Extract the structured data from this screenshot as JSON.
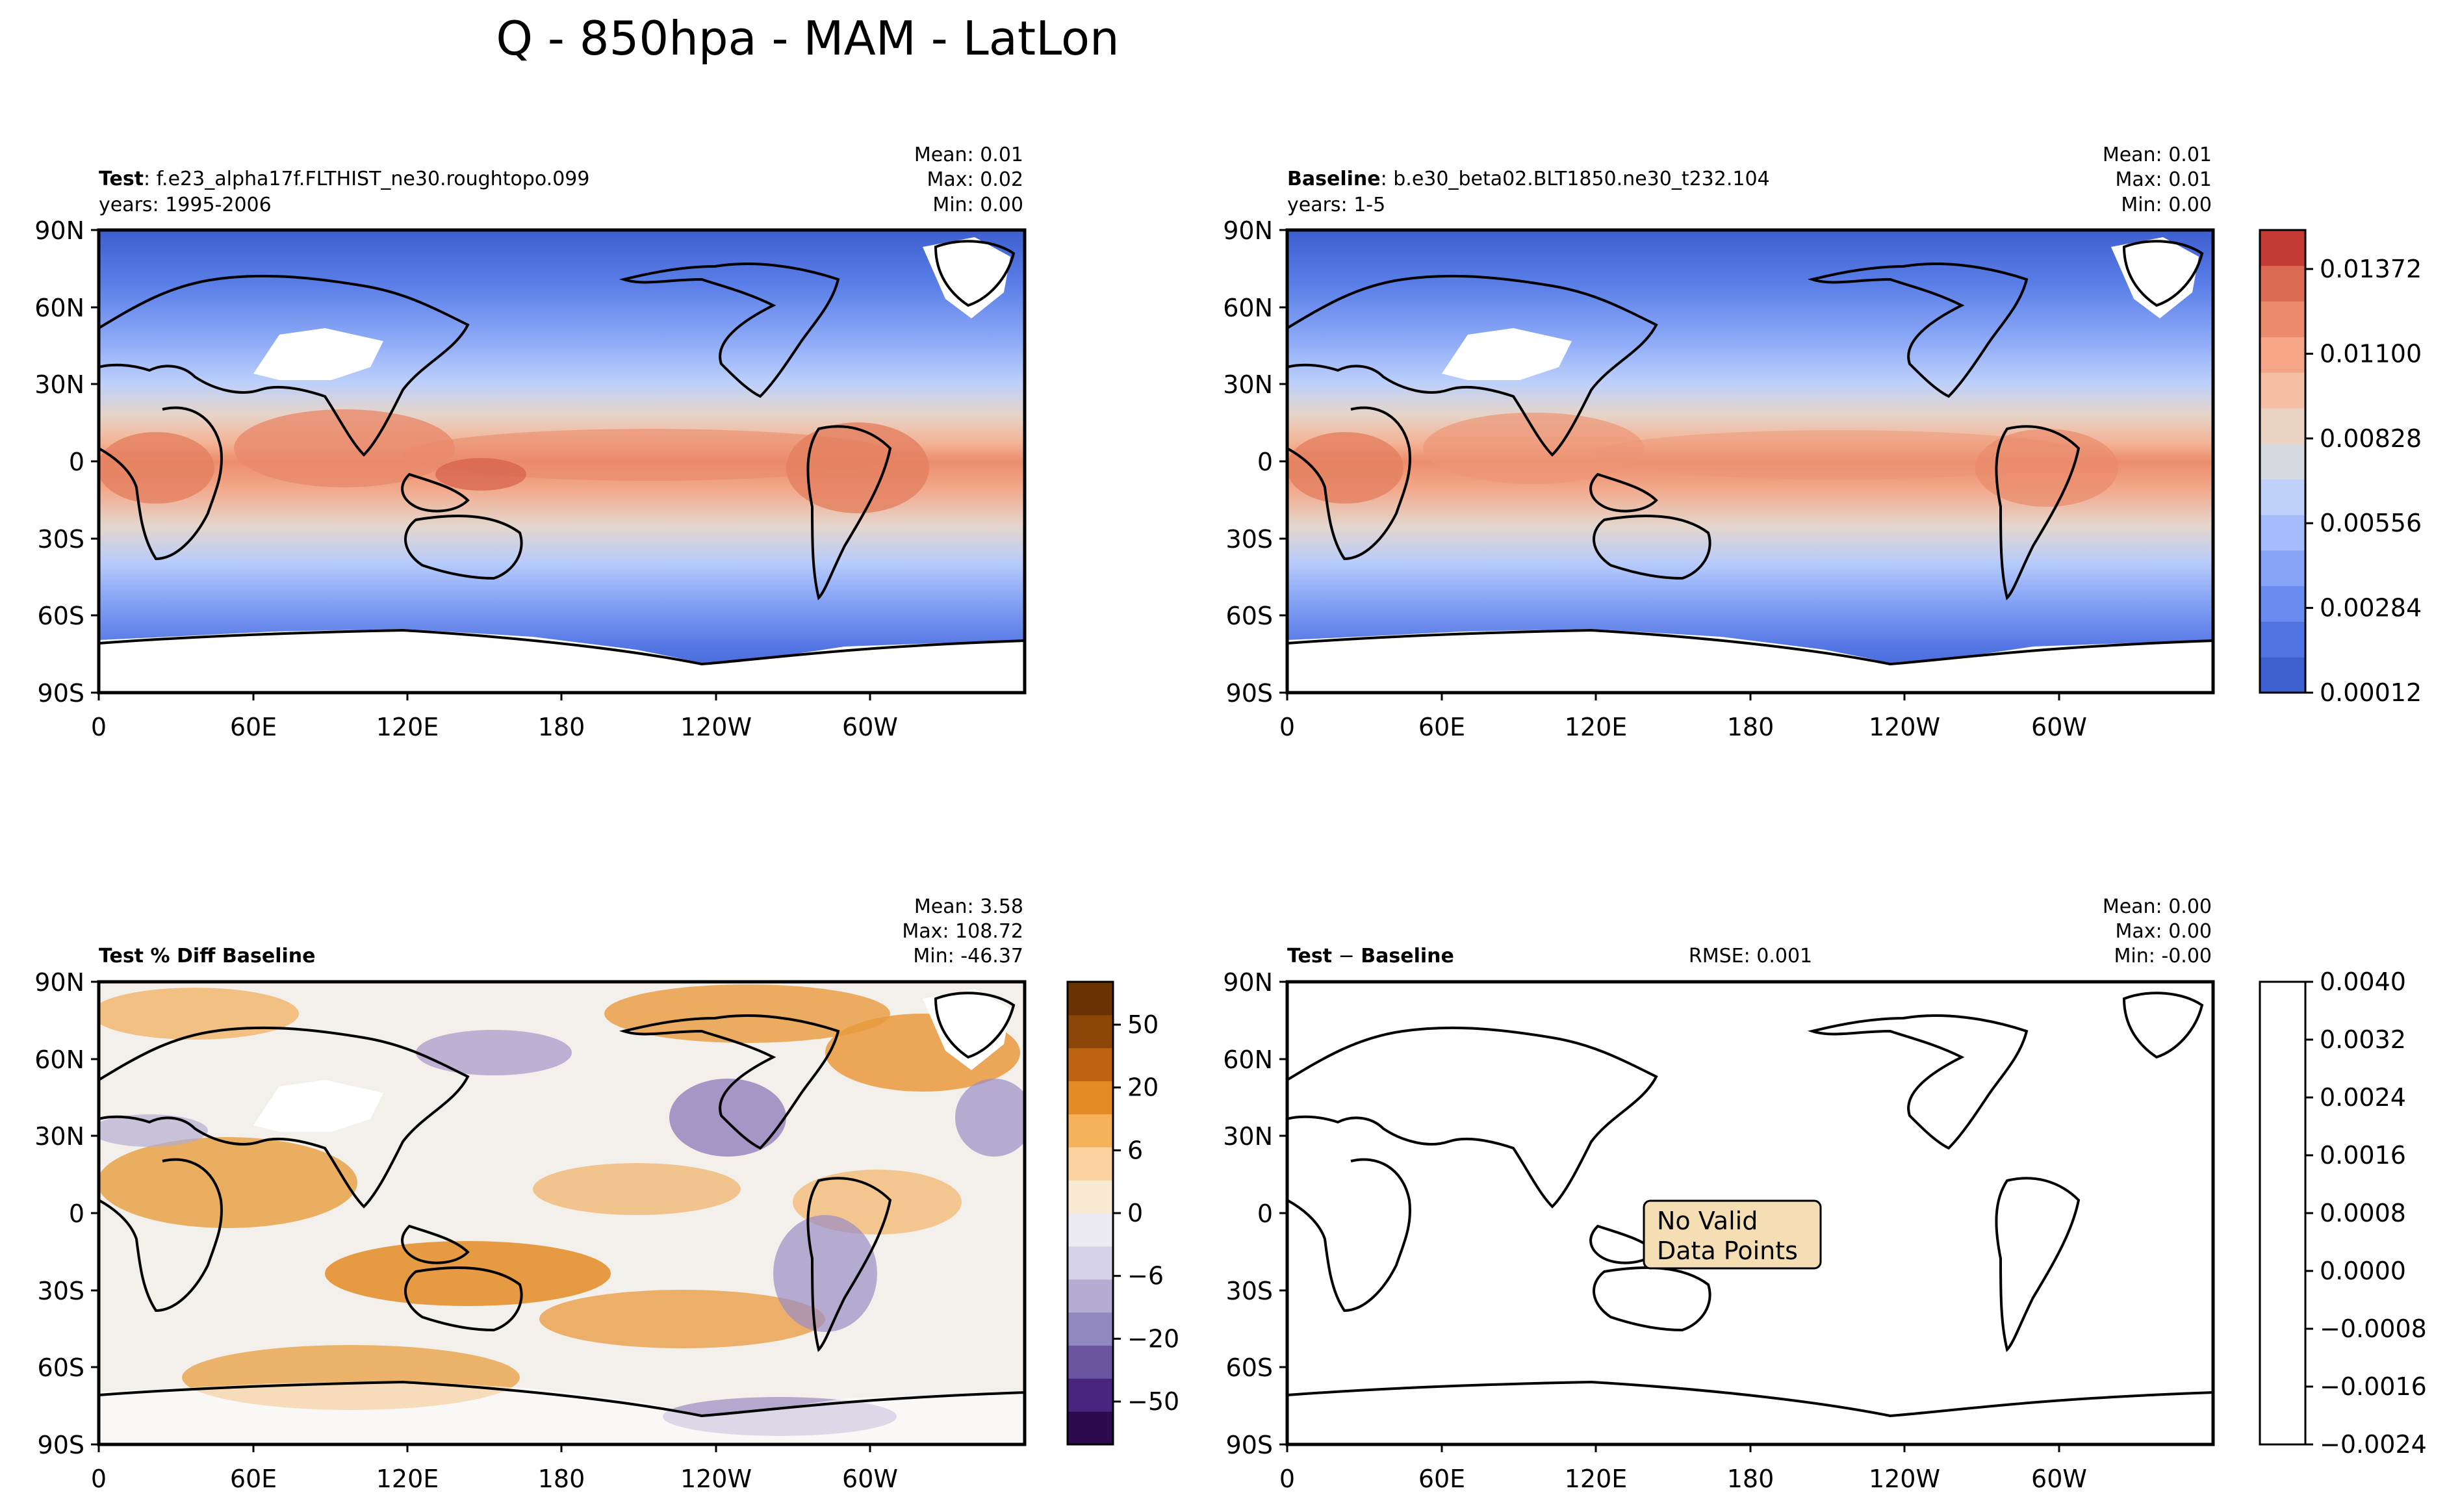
{
  "figure": {
    "title": "Q - 850hpa - MAM - LatLon"
  },
  "chart_data": [
    {
      "type": "heatmap",
      "id": "test",
      "title_bold": "Test",
      "title_rest": ": f.e23_alpha17f.FLTHIST_ne30.roughtopo.099",
      "subtitle": "years: 1995-2006",
      "stats": {
        "mean": "Mean:  0.01",
        "max": "Max:  0.02",
        "min": "Min:  0.00"
      },
      "x_ticks": [
        "0",
        "60E",
        "120E",
        "180",
        "120W",
        "60W"
      ],
      "y_ticks": [
        "90N",
        "60N",
        "30N",
        "0",
        "30S",
        "60S",
        "90S"
      ],
      "xlim": [
        0,
        360
      ],
      "ylim": [
        -90,
        90
      ],
      "colormap": "coolwarm",
      "description": "Specific humidity at 850 hPa, moist tropics (red) and dry poles (blue); missing values over high terrain."
    },
    {
      "type": "heatmap",
      "id": "baseline",
      "title_bold": "Baseline",
      "title_rest": ": b.e30_beta02.BLT1850.ne30_t232.104",
      "subtitle": "years: 1-5",
      "stats": {
        "mean": "Mean:  0.01",
        "max": "Max:  0.01",
        "min": "Min:  0.00"
      },
      "x_ticks": [
        "0",
        "60E",
        "120E",
        "180",
        "120W",
        "60W"
      ],
      "y_ticks": [
        "90N",
        "60N",
        "30N",
        "0",
        "30S",
        "60S",
        "90S"
      ],
      "xlim": [
        0,
        360
      ],
      "ylim": [
        -90,
        90
      ],
      "colormap": "coolwarm",
      "colorbar_ticks": [
        "0.01372",
        "0.01100",
        "0.00828",
        "0.00556",
        "0.00284",
        "0.00012"
      ]
    },
    {
      "type": "heatmap",
      "id": "pctdiff",
      "title_bold": "Test % Diff Baseline",
      "stats": {
        "mean": "Mean:  3.58",
        "max": "Max: 108.72",
        "min": "Min: -46.37"
      },
      "x_ticks": [
        "0",
        "60E",
        "120E",
        "180",
        "120W",
        "60W"
      ],
      "y_ticks": [
        "90N",
        "60N",
        "30N",
        "0",
        "30S",
        "60S",
        "90S"
      ],
      "xlim": [
        0,
        360
      ],
      "ylim": [
        -90,
        90
      ],
      "colormap": "PuOr_r",
      "colorbar_ticks": [
        "50",
        "20",
        "6",
        "0",
        "−6",
        "−20",
        "−50"
      ]
    },
    {
      "type": "heatmap",
      "id": "diff",
      "title_bold": "Test",
      "title_sep": " − ",
      "title_bold2": "Baseline",
      "rmse": "RMSE: 0.001",
      "stats": {
        "mean": "Mean:  0.00",
        "max": "Max:  0.00",
        "min": "Min: -0.00"
      },
      "x_ticks": [
        "0",
        "60E",
        "120E",
        "180",
        "120W",
        "60W"
      ],
      "y_ticks": [
        "90N",
        "60N",
        "30N",
        "0",
        "30S",
        "60S",
        "90S"
      ],
      "xlim": [
        0,
        360
      ],
      "ylim": [
        -90,
        90
      ],
      "annotation": [
        "No Valid",
        "Data Points"
      ],
      "colorbar_ticks": [
        "0.0040",
        "0.0032",
        "0.0024",
        "0.0016",
        "0.0008",
        "0.0000",
        "−0.0008",
        "−0.0016",
        "−0.0024"
      ]
    }
  ],
  "colors": {
    "coolwarm": [
      "#3d5fcf",
      "#5075e3",
      "#6a8bef",
      "#87a4f7",
      "#a4bcfb",
      "#bfd0f9",
      "#d6d9df",
      "#ebd3c4",
      "#f4bfa4",
      "#f3a585",
      "#eb8a6a",
      "#db6a52",
      "#c43a35"
    ],
    "puor": [
      "#2d0a4e",
      "#4a2580",
      "#6c55a0",
      "#9088bf",
      "#b4acd3",
      "#d6d2e8",
      "#eceaf2",
      "#f8ead3",
      "#fbd2a0",
      "#f6b25b",
      "#e38b24",
      "#bd6311",
      "#8c4607",
      "#6b3304"
    ],
    "land_outline": "#000000",
    "annotation_box": "#f5deb3"
  }
}
